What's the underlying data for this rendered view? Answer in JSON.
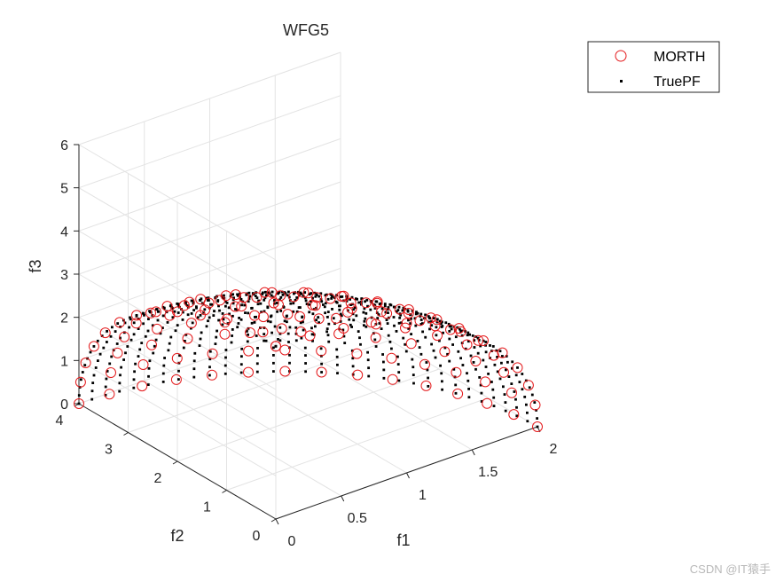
{
  "chart_data": {
    "type": "scatter",
    "title": "WFG5",
    "xlabel": "f1",
    "ylabel": "f2",
    "zlabel": "f3",
    "xlim": [
      0,
      2
    ],
    "ylim": [
      0,
      4
    ],
    "zlim": [
      0,
      6
    ],
    "xticks": [
      "0",
      "0.5",
      "1",
      "1.5",
      "2"
    ],
    "yticks": [
      "0",
      "1",
      "2",
      "3",
      "4"
    ],
    "zticks": [
      "0",
      "1",
      "2",
      "3",
      "4",
      "5",
      "6"
    ],
    "grid": true,
    "view": "3d",
    "legend_position": "top-right",
    "surface": "ellipsoid octant f1/2^2 + f2/4^2 + f3/6^2 = 1 (approx.), points sampled on angular grid",
    "series": [
      {
        "name": "MORTH",
        "marker": "circle",
        "color": "#e41a1c",
        "filled": false
      },
      {
        "name": "TruePF",
        "marker": "dot",
        "color": "#000000",
        "filled": true
      }
    ]
  },
  "watermark": "CSDN @IT猿手"
}
